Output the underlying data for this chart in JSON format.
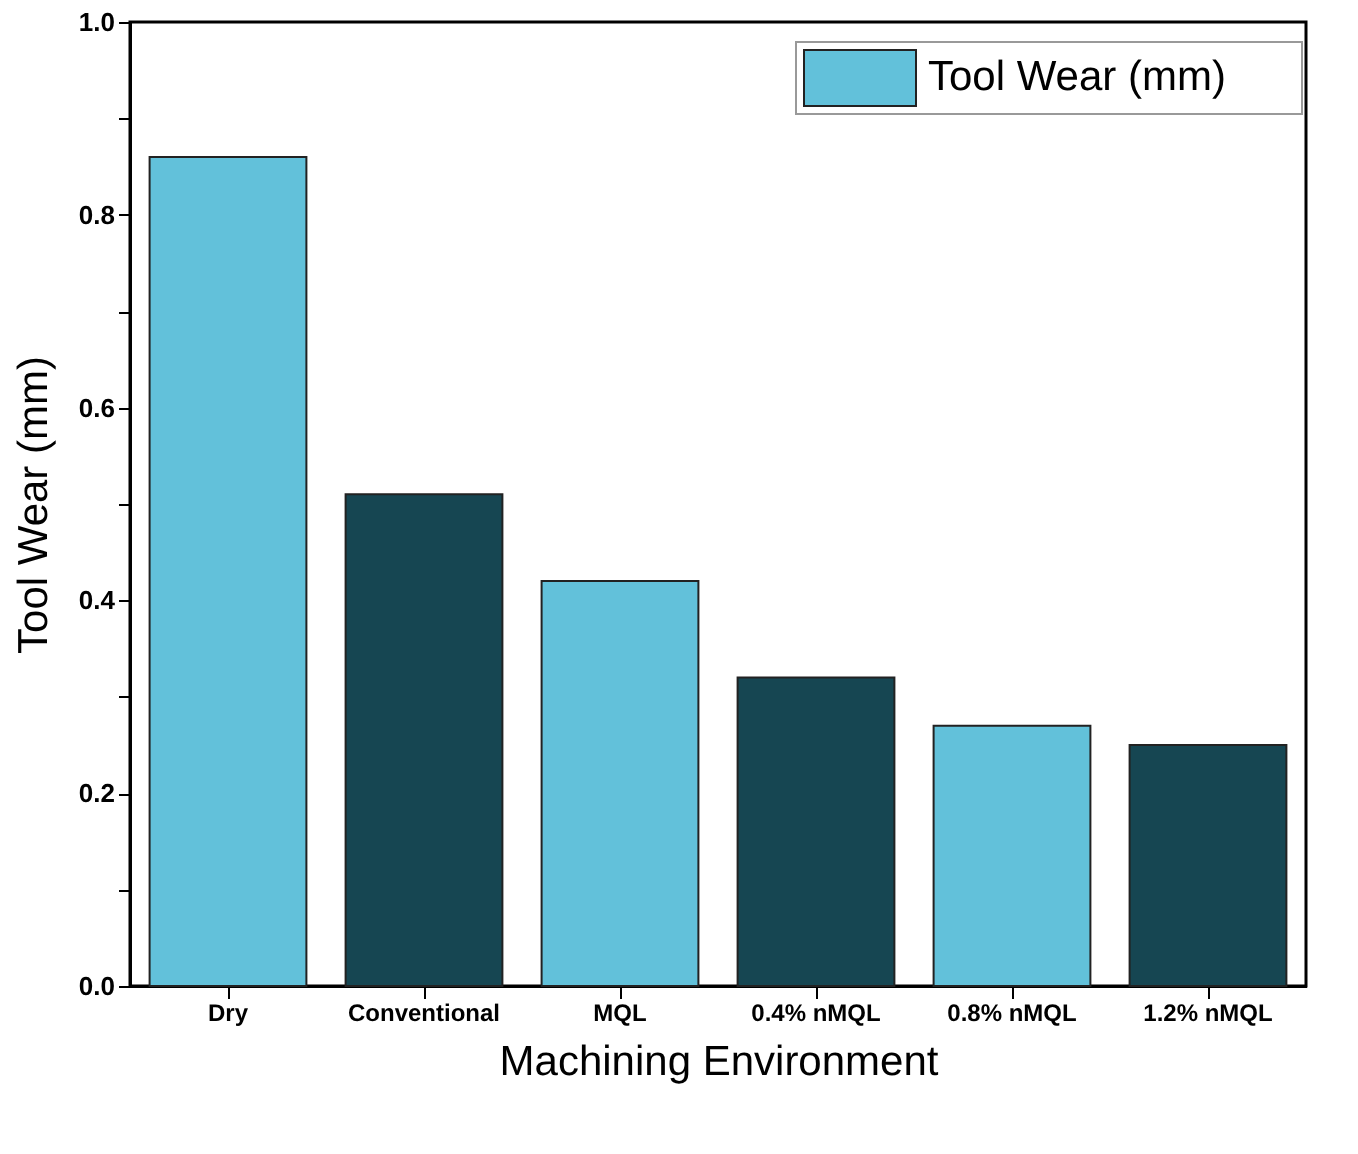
{
  "chart_data": {
    "type": "bar",
    "xlabel": "Machining Environment",
    "ylabel": "Tool Wear  (mm)",
    "categories": [
      "Dry",
      "Conventional",
      "MQL",
      "0.4% nMQL",
      "0.8% nMQL",
      "1.2% nMQL"
    ],
    "series": [
      {
        "name": "Tool Wear  (mm)",
        "colors": [
          "#62c1da",
          "#164652",
          "#62c1da",
          "#164652",
          "#62c1da",
          "#164652"
        ],
        "values": [
          0.86,
          0.51,
          0.42,
          0.32,
          0.27,
          0.25
        ]
      }
    ],
    "ylim": [
      0,
      1.0
    ],
    "yticks": [
      {
        "value": 0,
        "label": "0.0"
      },
      {
        "value": 0.1,
        "label": null
      },
      {
        "value": 0.2,
        "label": "0.2"
      },
      {
        "value": 0.3,
        "label": null
      },
      {
        "value": 0.4,
        "label": "0.4"
      },
      {
        "value": 0.5,
        "label": null
      },
      {
        "value": 0.6,
        "label": "0.6"
      },
      {
        "value": 0.7,
        "label": null
      },
      {
        "value": 0.8,
        "label": "0.8"
      },
      {
        "value": 0.9,
        "label": null
      },
      {
        "value": 1.0,
        "label": "1.0"
      }
    ],
    "grid": false,
    "legend": "top right"
  }
}
